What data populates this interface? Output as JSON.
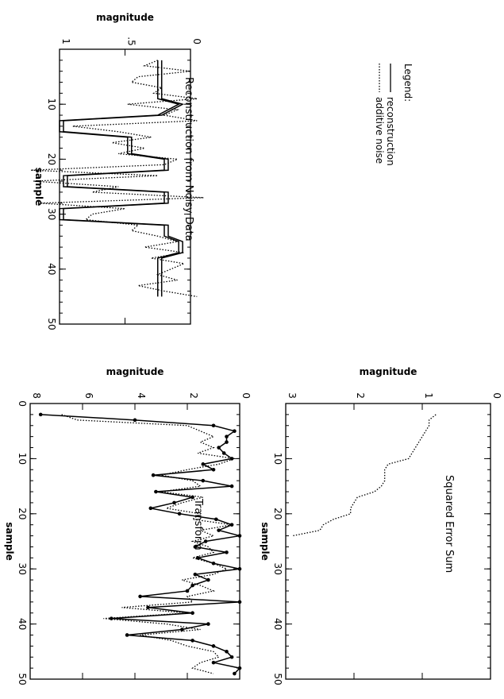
{
  "legend": {
    "title": "Legend:",
    "items": [
      {
        "label": "reconstruction",
        "style": "solid"
      },
      {
        "label": "additive noise",
        "style": "dotted"
      }
    ]
  },
  "colors": {
    "ink": "#000000",
    "background": "#ffffff"
  },
  "chart_data": [
    {
      "id": "reconstruction",
      "type": "line",
      "title": "Reconstruction from Noisy Data",
      "xlabel": "sample",
      "ylabel": "magnitude",
      "xlim": [
        0,
        50
      ],
      "ylim": [
        0,
        1.0
      ],
      "xticks": [
        "10",
        "20",
        "30",
        "40",
        "50"
      ],
      "yticks": [
        "0",
        ".5",
        "1"
      ],
      "series": [
        {
          "name": "reconstruction",
          "style": "solid",
          "x": [
            2,
            9,
            10,
            12,
            13,
            15,
            16,
            19,
            20,
            22,
            23,
            25,
            26,
            28,
            29,
            31,
            32,
            34,
            35,
            37,
            38,
            45
          ],
          "y": [
            0.22,
            0.22,
            0.06,
            0.22,
            0.97,
            0.97,
            0.45,
            0.45,
            0.17,
            0.17,
            0.94,
            0.94,
            0.17,
            0.17,
            0.97,
            0.97,
            0.17,
            0.17,
            0.06,
            0.06,
            0.22,
            0.22
          ]
        },
        {
          "name": "reconstruction-band",
          "style": "solid",
          "x": [
            2,
            9,
            10,
            12,
            13,
            15,
            16,
            19,
            20,
            22,
            23,
            25,
            26,
            28,
            29,
            31,
            32,
            34,
            35,
            37,
            38,
            45
          ],
          "y": [
            0.25,
            0.25,
            0.09,
            0.25,
            1.0,
            1.0,
            0.48,
            0.48,
            0.2,
            0.2,
            0.97,
            0.97,
            0.2,
            0.2,
            1.0,
            1.0,
            0.2,
            0.2,
            0.09,
            0.09,
            0.25,
            0.25
          ]
        },
        {
          "name": "additive noise",
          "style": "dotted",
          "x": [
            2,
            3,
            4,
            5,
            6,
            7,
            8,
            9,
            10,
            11,
            12,
            13,
            14,
            15,
            16,
            17,
            18,
            19,
            20,
            21,
            22,
            23,
            24,
            25,
            26,
            27,
            28,
            29,
            30,
            31,
            32,
            33,
            34,
            35,
            36,
            37,
            38,
            39,
            40,
            41,
            42,
            43,
            44,
            45
          ],
          "y": [
            0.25,
            0.35,
            0.0,
            0.4,
            0.45,
            0.22,
            0.28,
            -0.05,
            0.48,
            0.1,
            0.2,
            -0.05,
            0.9,
            0.55,
            0.3,
            0.6,
            0.35,
            0.55,
            0.1,
            0.2,
            1.22,
            0.25,
            1.2,
            0.55,
            0.75,
            -0.1,
            1.15,
            0.5,
            0.75,
            0.8,
            0.4,
            0.45,
            0.25,
            0.1,
            0.35,
            0.05,
            0.3,
            0.05,
            0.15,
            0.25,
            0.1,
            0.4,
            0.2,
            -0.05
          ]
        }
      ]
    },
    {
      "id": "squared-error",
      "type": "line",
      "title": "Squared Error Sum",
      "xlabel": "sample",
      "ylabel": "magnitude",
      "xlim": [
        0,
        50
      ],
      "ylim": [
        0,
        3
      ],
      "xticks": [
        "10",
        "20",
        "30",
        "40",
        "50"
      ],
      "yticks": [
        "0",
        "1",
        "2",
        "3"
      ],
      "series": [
        {
          "name": "squared error",
          "style": "dotted",
          "x": [
            2,
            3,
            4,
            5,
            6,
            7,
            8,
            9,
            10,
            11,
            12,
            13,
            14,
            15,
            16,
            17,
            18,
            19,
            20,
            21,
            22,
            23,
            24
          ],
          "y": [
            0.8,
            0.9,
            0.9,
            0.95,
            1.0,
            1.05,
            1.1,
            1.15,
            1.2,
            1.5,
            1.55,
            1.55,
            1.55,
            1.6,
            1.7,
            1.95,
            2.0,
            2.05,
            2.05,
            2.3,
            2.45,
            2.5,
            2.9
          ]
        }
      ]
    },
    {
      "id": "transform",
      "type": "line",
      "title": "Transform",
      "xlabel": "sample",
      "ylabel": "magnitude",
      "xlim": [
        0,
        50
      ],
      "ylim": [
        0,
        8
      ],
      "xticks": [
        "0",
        "10",
        "20",
        "30",
        "40",
        "50"
      ],
      "yticks": [
        "0",
        "2",
        "4",
        "6",
        "8"
      ],
      "series": [
        {
          "name": "transform",
          "style": "solid-markers",
          "x": [
            2,
            3,
            4,
            5,
            6,
            7,
            8,
            9,
            10,
            11,
            12,
            13,
            14,
            15,
            16,
            17,
            18,
            19,
            20,
            21,
            22,
            23,
            24,
            25,
            26,
            27,
            28,
            29,
            30,
            31,
            32,
            33,
            34,
            35,
            36,
            37,
            38,
            39,
            40,
            41,
            42,
            43,
            44,
            45,
            46,
            47,
            48,
            49
          ],
          "y": [
            7.6,
            4.0,
            1.0,
            0.2,
            0.5,
            0.5,
            0.8,
            0.6,
            0.3,
            1.4,
            1.0,
            3.3,
            1.4,
            0.3,
            3.2,
            1.8,
            2.5,
            3.4,
            2.3,
            0.9,
            0.3,
            0.8,
            0.0,
            1.3,
            1.7,
            0.5,
            1.6,
            1.0,
            0.0,
            1.7,
            1.2,
            1.8,
            2.0,
            3.8,
            0.0,
            3.5,
            1.8,
            4.9,
            1.2,
            2.2,
            4.3,
            1.8,
            1.0,
            0.5,
            0.3,
            1.0,
            0.0,
            0.2
          ]
        },
        {
          "name": "transform-noisy",
          "style": "dotted",
          "x": [
            2,
            3,
            4,
            5,
            6,
            7,
            8,
            9,
            10,
            11,
            12,
            13,
            14,
            15,
            16,
            17,
            18,
            19,
            20,
            21,
            22,
            23,
            24,
            25,
            26,
            27,
            28,
            29,
            30,
            31,
            32,
            33,
            34,
            35,
            36,
            37,
            38,
            39,
            40,
            41,
            42,
            43,
            44,
            45,
            46,
            47,
            48,
            49
          ],
          "y": [
            6.8,
            6.2,
            2.0,
            1.5,
            1.0,
            1.5,
            1.0,
            1.6,
            0.2,
            0.8,
            2.0,
            3.0,
            1.8,
            1.5,
            3.0,
            1.4,
            2.2,
            2.8,
            1.5,
            1.8,
            0.3,
            1.5,
            1.0,
            1.8,
            1.2,
            1.0,
            1.8,
            1.0,
            0.5,
            1.0,
            2.2,
            1.5,
            1.0,
            2.0,
            1.8,
            4.5,
            2.0,
            5.2,
            2.8,
            1.5,
            3.8,
            2.6,
            2.0,
            1.0,
            0.8,
            1.5,
            1.8,
            1.0
          ]
        }
      ]
    }
  ]
}
